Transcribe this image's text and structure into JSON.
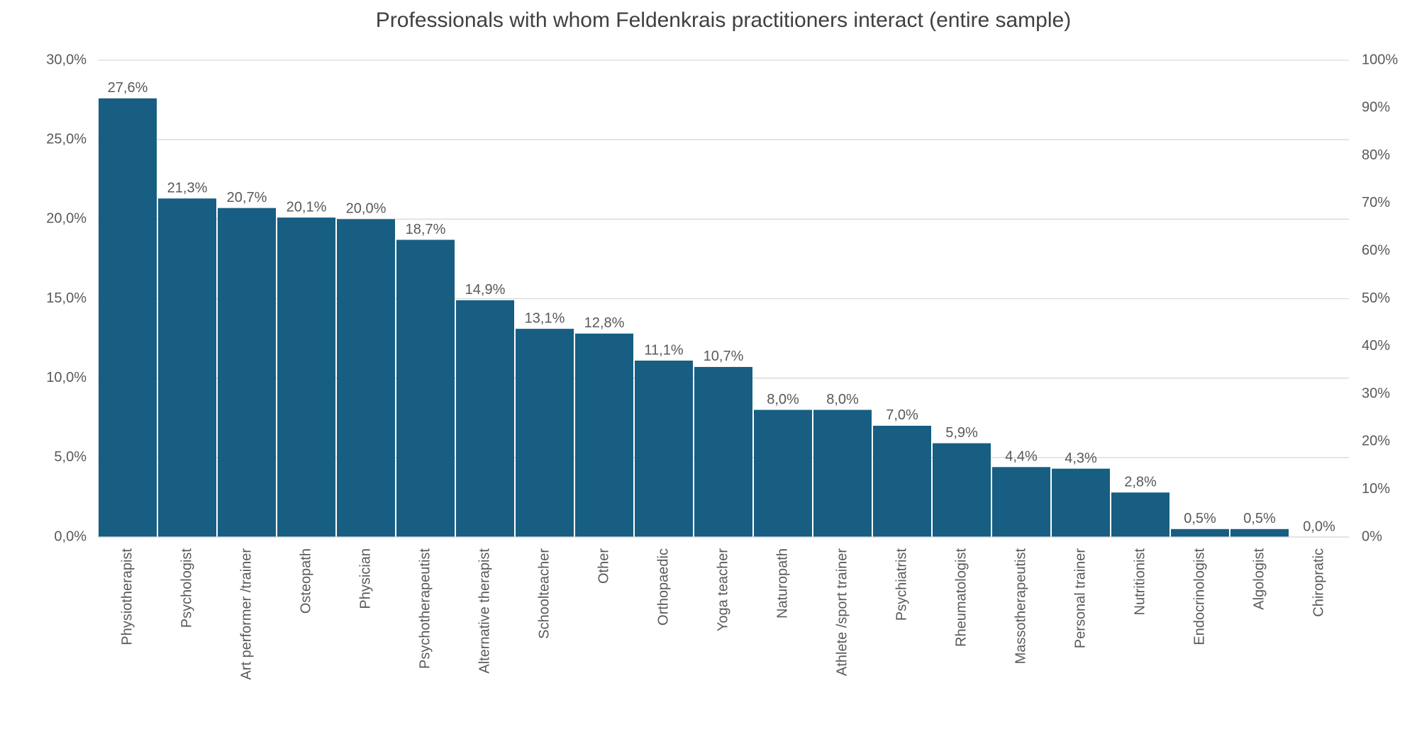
{
  "chart_data": {
    "type": "bar",
    "title": "Professionals with whom Feldenkrais practitioners interact (entire sample)",
    "categories": [
      "Physiotherapist",
      "Psychologist",
      "Art performer /trainer",
      "Osteopath",
      "Physician",
      "Psychotherapeutist",
      "Alternative therapist",
      "Schoolteacher",
      "Other",
      "Orthopaedic",
      "Yoga teacher",
      "Naturopath",
      "Athlete /sport trainer",
      "Psychiatrist",
      "Rheumatologist",
      "Massotherapeutist",
      "Personal trainer",
      "Nutritionist",
      "Endocrinologist",
      "Algologist",
      "Chiropratic"
    ],
    "values": [
      27.6,
      21.3,
      20.7,
      20.1,
      20.0,
      18.7,
      14.9,
      13.1,
      12.8,
      11.1,
      10.7,
      8.0,
      8.0,
      7.0,
      5.9,
      4.4,
      4.3,
      2.8,
      0.5,
      0.5,
      0.0
    ],
    "value_labels": [
      "27,6%",
      "21,3%",
      "20,7%",
      "20,1%",
      "20,0%",
      "18,7%",
      "14,9%",
      "13,1%",
      "12,8%",
      "11,1%",
      "10,7%",
      "8,0%",
      "8,0%",
      "7,0%",
      "5,9%",
      "4,4%",
      "4,3%",
      "2,8%",
      "0,5%",
      "0,5%",
      "0,0%"
    ],
    "color": "#175e82",
    "ylim": [
      0,
      30
    ],
    "yticks": [
      {
        "value": 0,
        "label": "0,0%"
      },
      {
        "value": 5,
        "label": "5,0%"
      },
      {
        "value": 10,
        "label": "10,0%"
      },
      {
        "value": 15,
        "label": "15,0%"
      },
      {
        "value": 20,
        "label": "20,0%"
      },
      {
        "value": 25,
        "label": "25,0%"
      },
      {
        "value": 30,
        "label": "30,0%"
      }
    ],
    "y2lim": [
      0,
      100
    ],
    "y2ticks": [
      {
        "value": 0,
        "label": "0%"
      },
      {
        "value": 10,
        "label": "10%"
      },
      {
        "value": 20,
        "label": "20%"
      },
      {
        "value": 30,
        "label": "30%"
      },
      {
        "value": 40,
        "label": "40%"
      },
      {
        "value": 50,
        "label": "50%"
      },
      {
        "value": 60,
        "label": "60%"
      },
      {
        "value": 70,
        "label": "70%"
      },
      {
        "value": 80,
        "label": "80%"
      },
      {
        "value": 90,
        "label": "90%"
      },
      {
        "value": 100,
        "label": "100%"
      }
    ],
    "grid": true
  }
}
